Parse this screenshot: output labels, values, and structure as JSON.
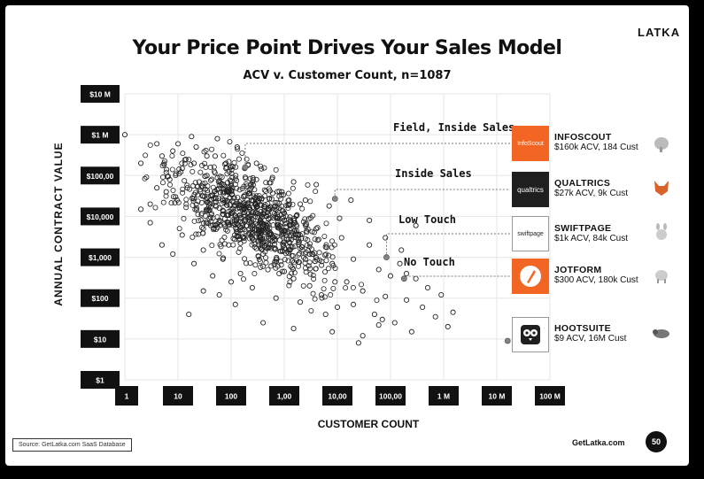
{
  "brand": "LATKA",
  "title": "Your Price Point Drives Your Sales Model",
  "chart_data": {
    "type": "scatter",
    "title": "ACV v. Customer Count, n=1087",
    "xlabel": "CUSTOMER COUNT",
    "ylabel": "ANNUAL CONTRACT VALUE",
    "x_scale": "log",
    "y_scale": "log",
    "xlim": [
      1,
      100000000
    ],
    "ylim": [
      1,
      10000000
    ],
    "x_ticks": [
      "1",
      "10",
      "100",
      "1,00",
      "10,00",
      "100,00",
      "1 M",
      "10 M",
      "100 M"
    ],
    "y_ticks": [
      "$10 M",
      "$1 M",
      "$100,00",
      "$10,000",
      "$1,000",
      "$100",
      "$10",
      "$1"
    ],
    "grid": true,
    "n": 1087,
    "note": "Dense point cloud; representative sample of points below",
    "points": [
      [
        1,
        1000000
      ],
      [
        2,
        15000
      ],
      [
        3,
        20000
      ],
      [
        4,
        50000
      ],
      [
        5,
        300000
      ],
      [
        6,
        120000
      ],
      [
        7,
        80000
      ],
      [
        8,
        400000
      ],
      [
        9,
        30000
      ],
      [
        10,
        600000
      ],
      [
        12,
        150000
      ],
      [
        15,
        50000
      ],
      [
        18,
        900000
      ],
      [
        20,
        200000
      ],
      [
        25,
        70000
      ],
      [
        30,
        5000
      ],
      [
        35,
        100000
      ],
      [
        40,
        20000
      ],
      [
        50,
        300000
      ],
      [
        60,
        8000
      ],
      [
        70,
        40000
      ],
      [
        80,
        150000
      ],
      [
        90,
        2000
      ],
      [
        100,
        60000
      ],
      [
        120,
        10000
      ],
      [
        150,
        400
      ],
      [
        200,
        25000
      ],
      [
        250,
        3000
      ],
      [
        300,
        80000
      ],
      [
        400,
        600
      ],
      [
        500,
        15000
      ],
      [
        600,
        2500
      ],
      [
        800,
        400
      ],
      [
        1000,
        8000
      ],
      [
        1200,
        1500
      ],
      [
        1500,
        300
      ],
      [
        2000,
        20000
      ],
      [
        2500,
        900
      ],
      [
        3000,
        200
      ],
      [
        4000,
        5000
      ],
      [
        5000,
        120
      ],
      [
        6000,
        1800
      ],
      [
        8000,
        700
      ],
      [
        10000,
        60
      ],
      [
        12000,
        3000
      ],
      [
        15000,
        250
      ],
      [
        20000,
        900
      ],
      [
        30000,
        150
      ],
      [
        40000,
        2000
      ],
      [
        50000,
        40
      ],
      [
        60000,
        500
      ],
      [
        80000,
        110
      ],
      [
        100000,
        350
      ],
      [
        120000,
        25
      ],
      [
        150000,
        700
      ],
      [
        200000,
        90
      ],
      [
        250000,
        15
      ],
      [
        300000,
        300
      ],
      [
        400000,
        60
      ],
      [
        500000,
        180
      ],
      [
        700000,
        35
      ],
      [
        900000,
        120
      ],
      [
        1200000,
        20
      ],
      [
        1500000,
        45
      ],
      [
        3,
        7000
      ],
      [
        5,
        2000
      ],
      [
        8,
        1200
      ],
      [
        12,
        3500
      ],
      [
        20,
        700
      ],
      [
        30,
        1500
      ],
      [
        45,
        350
      ],
      [
        70,
        900
      ],
      [
        100,
        250
      ],
      [
        150,
        2200
      ],
      [
        250,
        180
      ],
      [
        400,
        1200
      ],
      [
        700,
        100
      ],
      [
        1000,
        450
      ],
      [
        2000,
        80
      ],
      [
        3000,
        1200
      ],
      [
        6000,
        40
      ],
      [
        9000,
        250
      ],
      [
        20000,
        70
      ],
      [
        30000,
        12
      ],
      [
        70000,
        30
      ],
      [
        200000,
        400
      ],
      [
        2,
        200000
      ],
      [
        4,
        600000
      ],
      [
        6,
        40000
      ],
      [
        14,
        250000
      ],
      [
        22,
        500000
      ],
      [
        35,
        300000
      ],
      [
        55,
        800000
      ],
      [
        80,
        200000
      ],
      [
        130,
        500000
      ],
      [
        180,
        150000
      ],
      [
        300,
        200000
      ],
      [
        600,
        90000
      ],
      [
        900,
        40000
      ],
      [
        1500,
        70000
      ],
      [
        2500,
        25000
      ],
      [
        4000,
        60000
      ],
      [
        7000,
        18000
      ],
      [
        11000,
        9000
      ],
      [
        18000,
        25000
      ],
      [
        40000,
        8000
      ],
      [
        80000,
        3000
      ],
      [
        160000,
        1500
      ],
      [
        300000,
        6000
      ],
      [
        16,
        40
      ],
      [
        30,
        150
      ],
      [
        60,
        120
      ],
      [
        120,
        70
      ],
      [
        400,
        25
      ],
      [
        1500,
        18
      ],
      [
        8000,
        15
      ],
      [
        25000,
        8
      ],
      [
        60000,
        22
      ]
    ],
    "tiers": [
      {
        "label": "Field, Inside Sales",
        "company": "INFOSCOUT",
        "detail": "$160k ACV, 184 Cust",
        "x": 184,
        "y": 160000
      },
      {
        "label": "Inside Sales",
        "company": "QUALTRICS",
        "detail": "$27k ACV, 9k Cust",
        "x": 9000,
        "y": 27000
      },
      {
        "label": "Low Touch",
        "company": "SWIFTPAGE",
        "detail": "$1k ACV, 84k Cust",
        "x": 84000,
        "y": 1000
      },
      {
        "label": "No Touch",
        "company": "JOTFORM",
        "detail": "$300 ACV, 180k Cust",
        "x": 180000,
        "y": 300
      },
      {
        "label": "",
        "company": "HOOTSUITE",
        "detail": "$9 ACV, 16M Cust",
        "x": 16000000,
        "y": 9
      }
    ]
  },
  "logos": {
    "infoscout": "InfoScout",
    "qualtrics": "qualtrics",
    "swiftpage": "swiftpage",
    "jotform_color": "#f26522",
    "infoscout_color": "#f26522",
    "qualtrics_color": "#1f1f1f",
    "hootsuite_color": "#1f1f1f"
  },
  "footer": {
    "source": "Source: GetLatka.com SaaS Database",
    "site": "GetLatka.com",
    "page": "50"
  }
}
